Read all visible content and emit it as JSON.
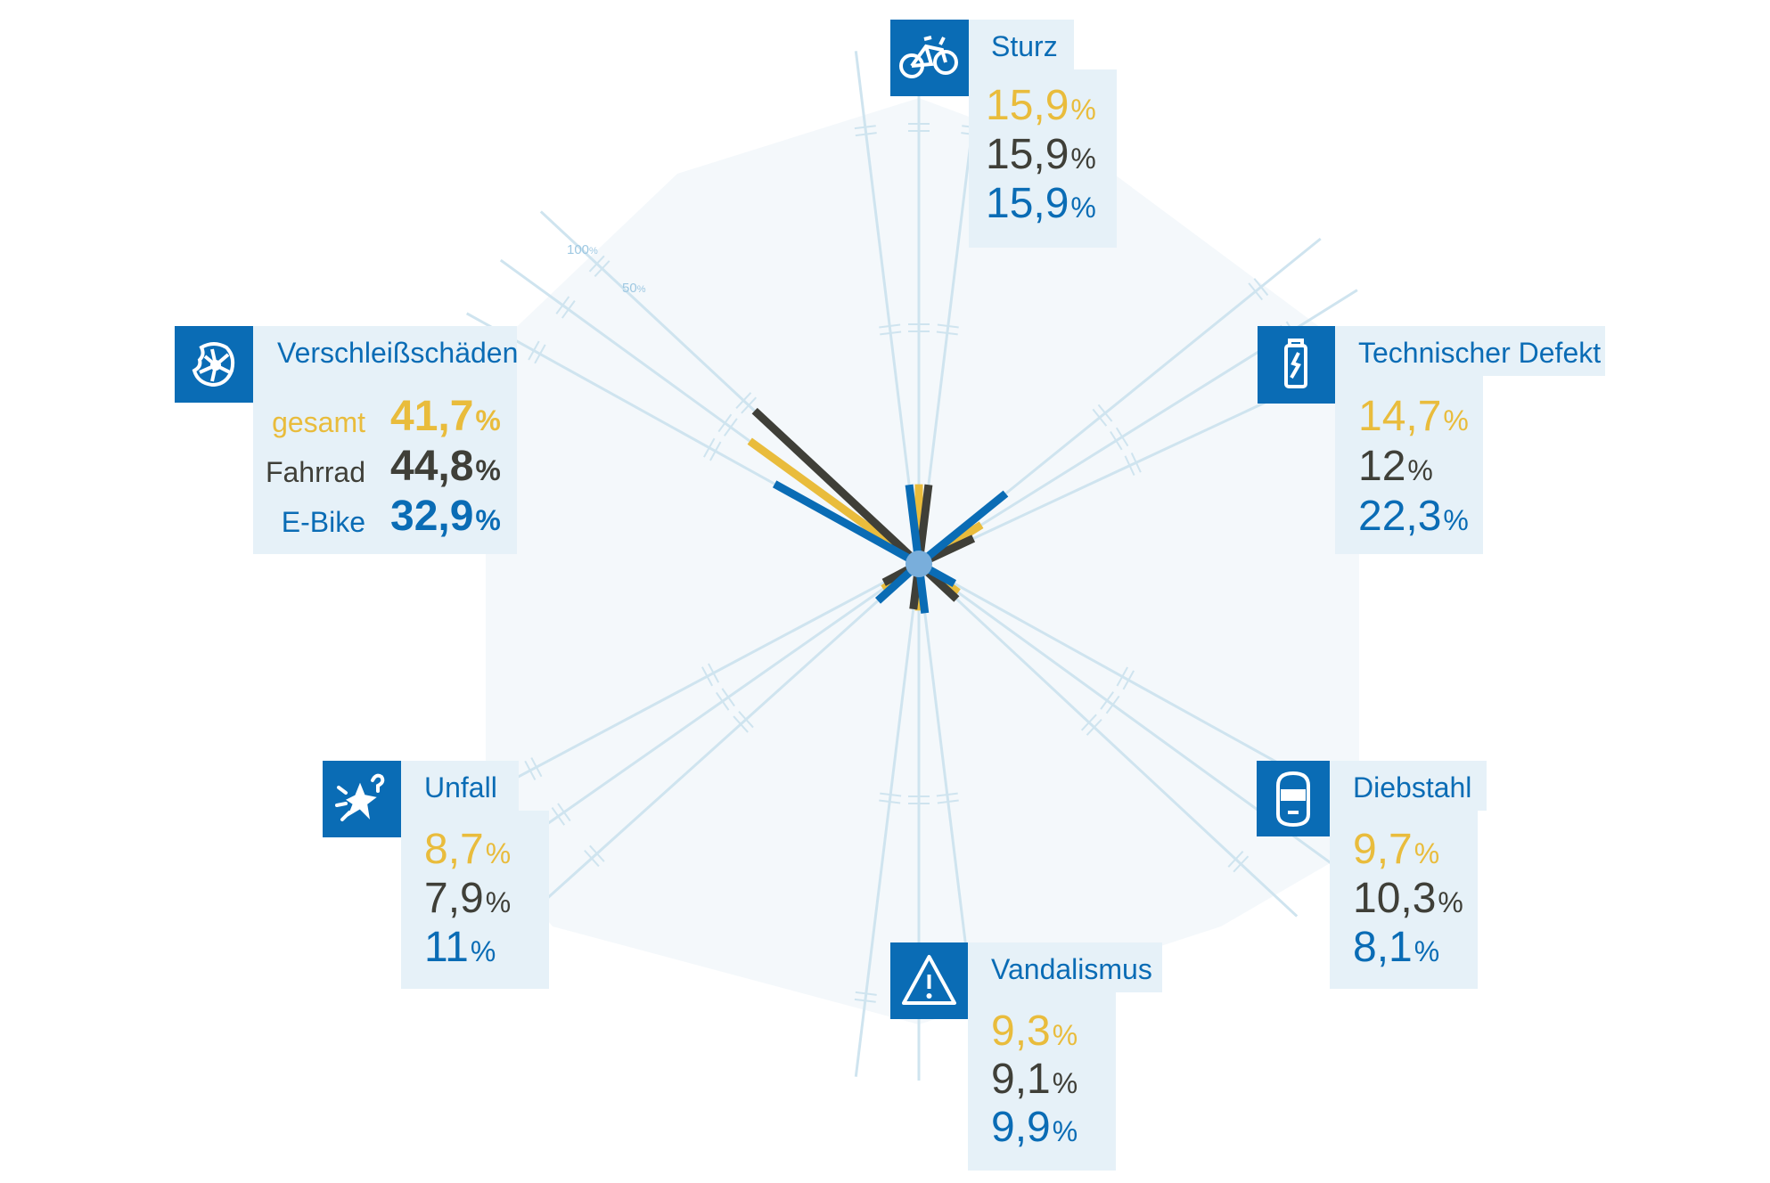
{
  "colors": {
    "gesamt": "#e9bc3c",
    "fahrrad": "#3f3f38",
    "ebike": "#0a6cb5",
    "grid": "#cfe4ef",
    "panel": "#e6f1f8",
    "hexagon": "#f4f8fb"
  },
  "scale_labels": {
    "outer": "100",
    "inner": "50",
    "unit": "%"
  },
  "legend": {
    "gesamt": "gesamt",
    "fahrrad": "Fahrrad",
    "ebike": "E-Bike"
  },
  "percent_sign": "%",
  "chart_data": {
    "type": "radial-bar",
    "categories": [
      "Sturz",
      "Technischer Defekt",
      "Diebstahl",
      "Vandalismus",
      "Unfall",
      "Verschleißschäden"
    ],
    "series": [
      {
        "name": "gesamt",
        "values": [
          15.9,
          14.7,
          9.7,
          9.3,
          8.7,
          41.7
        ]
      },
      {
        "name": "Fahrrad",
        "values": [
          15.9,
          12,
          10.3,
          9.1,
          7.9,
          44.8
        ]
      },
      {
        "name": "E-Bike",
        "values": [
          15.9,
          22.3,
          8.1,
          9.9,
          11,
          32.9
        ]
      }
    ],
    "ylim": [
      0,
      100
    ]
  },
  "categories": [
    {
      "title": "Sturz",
      "icon": "bicycle-fall-icon",
      "gesamt": "15,9",
      "fahrrad": "15,9",
      "ebike": "15,9"
    },
    {
      "title": "Technischer Defekt",
      "icon": "broken-part-icon",
      "gesamt": "14,7",
      "fahrrad": "12",
      "ebike": "22,3"
    },
    {
      "title": "Diebstahl",
      "icon": "thief-mask-icon",
      "gesamt": "9,7",
      "fahrrad": "10,3",
      "ebike": "8,1"
    },
    {
      "title": "Vandalismus",
      "icon": "warning-icon",
      "gesamt": "9,3",
      "fahrrad": "9,1",
      "ebike": "9,9"
    },
    {
      "title": "Unfall",
      "icon": "crash-icon",
      "gesamt": "8,7",
      "fahrrad": "7,9",
      "ebike": "11"
    },
    {
      "title": "Verschleißschäden",
      "icon": "worn-wheel-icon",
      "gesamt": "41,7",
      "fahrrad": "44,8",
      "ebike": "32,9"
    }
  ]
}
